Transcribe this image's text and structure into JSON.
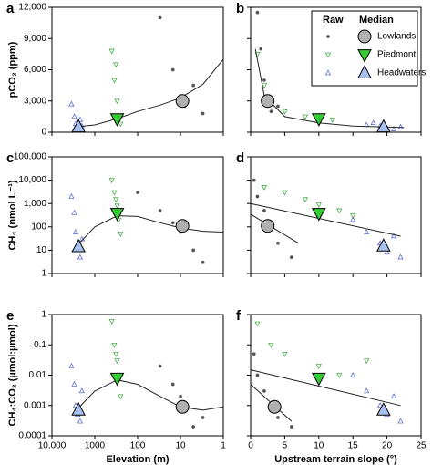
{
  "chart_data": [
    {
      "type": "scatter",
      "panel_label": "a",
      "ylabel": "pCO₂ (ppm)",
      "xscale": "log",
      "xlim": [
        10000,
        1
      ],
      "xticks": [
        10000,
        1000,
        100,
        10,
        1
      ],
      "yscale": "linear",
      "ylim": [
        0,
        12000
      ],
      "yticks": [
        0,
        {
          "value": 3000,
          "label": "3,000"
        },
        {
          "value": 6000,
          "label": "6,000"
        },
        {
          "value": 9000,
          "label": "9,000"
        },
        {
          "value": 12000,
          "label": "12,000"
        }
      ],
      "series": [
        {
          "name": "Lowlands",
          "color": "#555555",
          "median_color": "#b0b0b0",
          "marker": "circle",
          "x": [
            30,
            15,
            10,
            8,
            5,
            3
          ],
          "values": [
            11000,
            6000,
            3500,
            2500,
            4500,
            1800
          ],
          "median_x": 9,
          "median_y": 3000
        },
        {
          "name": "Piedmont",
          "color": "#2e9e2e",
          "median_color": "#33cc33",
          "marker": "down",
          "x": [
            400,
            350,
            300,
            280,
            250,
            320
          ],
          "values": [
            7800,
            5000,
            3000,
            1500,
            800,
            6500
          ],
          "median_x": 300,
          "median_y": 1300
        },
        {
          "name": "Headwaters",
          "color": "#4a5bd4",
          "median_color": "#a8c0f0",
          "marker": "up",
          "x": [
            3500,
            3000,
            2800,
            2500,
            2200,
            2000
          ],
          "values": [
            2700,
            1500,
            800,
            400,
            1200,
            600
          ],
          "median_x": 2400,
          "median_y": 500
        }
      ],
      "fits": [
        {
          "x": [
            3000,
            1000,
            300,
            100,
            30,
            10,
            3,
            1
          ],
          "values": [
            500,
            700,
            1300,
            2000,
            2600,
            3300,
            4600,
            7000
          ]
        }
      ]
    },
    {
      "type": "scatter",
      "panel_label": "b",
      "xscale": "linear",
      "xlim": [
        0,
        25
      ],
      "xticks": [
        0,
        5,
        10,
        15,
        20,
        25
      ],
      "yscale": "linear",
      "ylim": [
        0,
        12000
      ],
      "yticks": [
        0,
        3000,
        6000,
        9000,
        12000
      ],
      "legend": {
        "corner": "upper right",
        "titles": [
          "Raw",
          "Median"
        ]
      },
      "series": [
        {
          "name": "Lowlands",
          "color": "#555555",
          "median_color": "#b0b0b0",
          "marker": "circle",
          "x": [
            1,
            1.5,
            2,
            2.5,
            3,
            4
          ],
          "values": [
            11500,
            8000,
            5000,
            3000,
            2000,
            2500
          ],
          "median_x": 2.5,
          "median_y": 3000
        },
        {
          "name": "Piedmont",
          "color": "#2e9e2e",
          "median_color": "#33cc33",
          "marker": "down",
          "x": [
            1,
            2,
            3,
            5,
            8,
            12
          ],
          "values": [
            7500,
            4500,
            3000,
            2000,
            1500,
            1200
          ],
          "median_x": 10,
          "median_y": 1300
        },
        {
          "name": "Headwaters",
          "color": "#4a5bd4",
          "median_color": "#a8c0f0",
          "marker": "up",
          "x": [
            18,
            19,
            20,
            21,
            22,
            17
          ],
          "values": [
            900,
            600,
            400,
            300,
            500,
            700
          ],
          "median_x": 19.5,
          "median_y": 500
        }
      ],
      "fits": [
        {
          "x": [
            0.7,
            2,
            5,
            10,
            15,
            20,
            22.5
          ],
          "values": [
            8000,
            3500,
            1500,
            900,
            600,
            500,
            450
          ]
        }
      ]
    },
    {
      "type": "scatter",
      "panel_label": "c",
      "ylabel": "CH₄ (nmol L⁻¹)",
      "xscale": "log",
      "xlim": [
        10000,
        1
      ],
      "xticks": [
        10000,
        1000,
        100,
        10,
        1
      ],
      "yscale": "log",
      "ylim": [
        1,
        100000
      ],
      "yticks": [
        1,
        10,
        100,
        {
          "value": 1000,
          "label": "1,000"
        },
        {
          "value": 10000,
          "label": "10,000"
        },
        {
          "value": 100000,
          "label": "100,000"
        }
      ],
      "series": [
        {
          "name": "Lowlands",
          "color": "#555555",
          "median_color": "#b0b0b0",
          "marker": "circle",
          "x": [
            100,
            30,
            15,
            10,
            5,
            3
          ],
          "values": [
            3000,
            500,
            150,
            60,
            10,
            3
          ],
          "median_x": 9,
          "median_y": 110
        },
        {
          "name": "Piedmont",
          "color": "#2e9e2e",
          "median_color": "#33cc33",
          "marker": "down",
          "x": [
            400,
            350,
            300,
            280,
            250,
            320
          ],
          "values": [
            10000,
            3000,
            800,
            200,
            50,
            1500
          ],
          "median_x": 300,
          "median_y": 380
        },
        {
          "name": "Headwaters",
          "color": "#4a5bd4",
          "median_color": "#a8c0f0",
          "marker": "up",
          "x": [
            3500,
            3000,
            2800,
            2500,
            2200,
            2000
          ],
          "values": [
            2000,
            400,
            60,
            12,
            5,
            30
          ],
          "median_x": 2400,
          "median_y": 14
        }
      ],
      "fits": [
        {
          "x": [
            3000,
            1000,
            300,
            100,
            30,
            10,
            3,
            1
          ],
          "values": [
            12,
            100,
            300,
            280,
            150,
            90,
            65,
            60
          ]
        }
      ]
    },
    {
      "type": "scatter",
      "panel_label": "d",
      "xscale": "linear",
      "xlim": [
        0,
        25
      ],
      "xticks": [
        0,
        5,
        10,
        15,
        20,
        25
      ],
      "yscale": "log",
      "ylim": [
        1,
        100000
      ],
      "yticks": [
        1,
        10,
        100,
        1000,
        10000,
        100000
      ],
      "series": [
        {
          "name": "Lowlands",
          "color": "#555555",
          "median_color": "#b0b0b0",
          "marker": "circle",
          "x": [
            0.5,
            1,
            2,
            3,
            4,
            6
          ],
          "values": [
            10000,
            2000,
            500,
            100,
            20,
            5
          ],
          "median_x": 2.5,
          "median_y": 110
        },
        {
          "name": "Piedmont",
          "color": "#2e9e2e",
          "median_color": "#33cc33",
          "marker": "down",
          "x": [
            2,
            5,
            8,
            10,
            13,
            15
          ],
          "values": [
            5000,
            3000,
            1500,
            900,
            500,
            300
          ],
          "median_x": 10,
          "median_y": 380
        },
        {
          "name": "Headwaters",
          "color": "#4a5bd4",
          "median_color": "#a8c0f0",
          "marker": "up",
          "x": [
            15,
            17,
            19,
            20,
            22,
            21
          ],
          "values": [
            200,
            60,
            20,
            8,
            5,
            40
          ],
          "median_x": 19.5,
          "median_y": 15
        }
      ],
      "fits": [
        {
          "x": [
            0,
            22
          ],
          "values": [
            1000,
            40
          ]
        },
        {
          "x": [
            0,
            7
          ],
          "values": [
            350,
            20
          ]
        }
      ]
    },
    {
      "type": "scatter",
      "panel_label": "e",
      "ylabel": "CH₄:CO₂ (µmol:µmol)",
      "xlabel": "Elevation (m)",
      "xscale": "log",
      "xlim": [
        10000,
        1
      ],
      "xticks": [
        {
          "value": 10000,
          "label": "10,000"
        },
        1000,
        100,
        10,
        1
      ],
      "yscale": "log",
      "ylim": [
        0.0001,
        1
      ],
      "yticks": [
        0.0001,
        0.001,
        0.01,
        0.1,
        1
      ],
      "series": [
        {
          "name": "Lowlands",
          "color": "#555555",
          "median_color": "#b0b0b0",
          "marker": "circle",
          "x": [
            30,
            15,
            10,
            8,
            5,
            3
          ],
          "values": [
            0.02,
            0.005,
            0.002,
            0.0007,
            0.0002,
            0.0004
          ],
          "median_x": 9,
          "median_y": 0.0009
        },
        {
          "name": "Piedmont",
          "color": "#2e9e2e",
          "median_color": "#33cc33",
          "marker": "down",
          "x": [
            400,
            350,
            300,
            280,
            250,
            320
          ],
          "values": [
            0.6,
            0.1,
            0.03,
            0.01,
            0.002,
            0.05
          ],
          "median_x": 300,
          "median_y": 0.008
        },
        {
          "name": "Headwaters",
          "color": "#4a5bd4",
          "median_color": "#a8c0f0",
          "marker": "up",
          "x": [
            3500,
            3000,
            2800,
            2500,
            2200,
            2000
          ],
          "values": [
            0.02,
            0.005,
            0.001,
            0.0005,
            0.0003,
            0.003
          ],
          "median_x": 2400,
          "median_y": 0.0007
        }
      ],
      "fits": [
        {
          "x": [
            3000,
            1000,
            300,
            100,
            30,
            10,
            3,
            1
          ],
          "values": [
            0.0006,
            0.003,
            0.007,
            0.005,
            0.002,
            0.0009,
            0.0007,
            0.0009
          ]
        }
      ]
    },
    {
      "type": "scatter",
      "panel_label": "f",
      "xlabel": "Upstream terrain slope (°)",
      "xscale": "linear",
      "xlim": [
        0,
        25
      ],
      "xticks": [
        0,
        5,
        10,
        15,
        20,
        25
      ],
      "yscale": "log",
      "ylim": [
        0.0001,
        1
      ],
      "yticks": [
        0.0001,
        0.001,
        0.01,
        0.1,
        1
      ],
      "series": [
        {
          "name": "Lowlands",
          "color": "#555555",
          "median_color": "#b0b0b0",
          "marker": "circle",
          "x": [
            0.5,
            1,
            2,
            3,
            4,
            6
          ],
          "values": [
            0.05,
            0.01,
            0.003,
            0.001,
            0.0004,
            0.0002
          ],
          "median_x": 3.5,
          "median_y": 0.0009
        },
        {
          "name": "Piedmont",
          "color": "#2e9e2e",
          "median_color": "#33cc33",
          "marker": "down",
          "x": [
            1,
            3,
            5,
            10,
            13,
            17
          ],
          "values": [
            0.5,
            0.1,
            0.05,
            0.02,
            0.01,
            0.03
          ],
          "median_x": 10,
          "median_y": 0.008
        },
        {
          "name": "Headwaters",
          "color": "#4a5bd4",
          "median_color": "#a8c0f0",
          "marker": "up",
          "x": [
            15,
            17,
            19,
            20,
            22,
            21
          ],
          "values": [
            0.01,
            0.003,
            0.001,
            0.0005,
            0.0003,
            0.002
          ],
          "median_x": 19.5,
          "median_y": 0.0007
        }
      ],
      "fits": [
        {
          "x": [
            0,
            22
          ],
          "values": [
            0.015,
            0.001
          ]
        },
        {
          "x": [
            0,
            6
          ],
          "values": [
            0.005,
            0.0003
          ]
        }
      ]
    }
  ]
}
